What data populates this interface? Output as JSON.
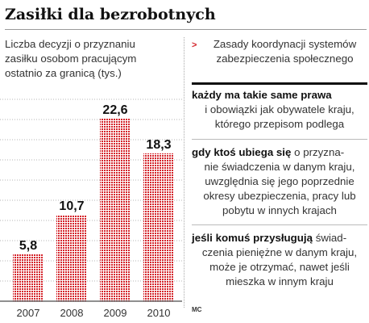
{
  "header": {
    "title": "Zasiłki dla bezrobotnych"
  },
  "chart_data": {
    "type": "bar",
    "title": "",
    "subtitle_lines": [
      "Liczba decyzji o przyznaniu",
      "zasiłku osobom pracującym",
      "ostatnio za granicą (tys.)"
    ],
    "categories": [
      "2007",
      "2008",
      "2009",
      "2010"
    ],
    "values": [
      5.8,
      10.7,
      22.6,
      18.3
    ],
    "value_labels": [
      "5,8",
      "10,7",
      "22,6",
      "18,3"
    ],
    "ylim": [
      0,
      25
    ],
    "grid": true,
    "bar_color": "#d4232a",
    "xlabel": "",
    "ylabel": ""
  },
  "sidebar": {
    "heading_lines": [
      "Zasady koordynacji systemów",
      "zabezpieczenia społecznego"
    ],
    "blocks": [
      {
        "bold": "każdy ma takie same prawa",
        "rest": "",
        "lines": [
          "i obowiązki jak obywatele kraju,",
          "którego przepisom podlega"
        ]
      },
      {
        "bold": "gdy ktoś ubiega się",
        "rest": " o przyzna-",
        "lines": [
          "nie świadczenia w danym kraju,",
          "uwzględnia się jego poprzednie",
          "okresy ubezpieczenia, pracy lub",
          "pobytu w innych krajach"
        ]
      },
      {
        "bold": "jeśli komuś przysługują",
        "rest": " świad-",
        "lines": [
          "czenia pieniężne w danym kraju,",
          "może je otrzymać, nawet jeśli",
          "mieszka w innym kraju"
        ]
      }
    ]
  },
  "footer": {
    "credit": "MC"
  }
}
